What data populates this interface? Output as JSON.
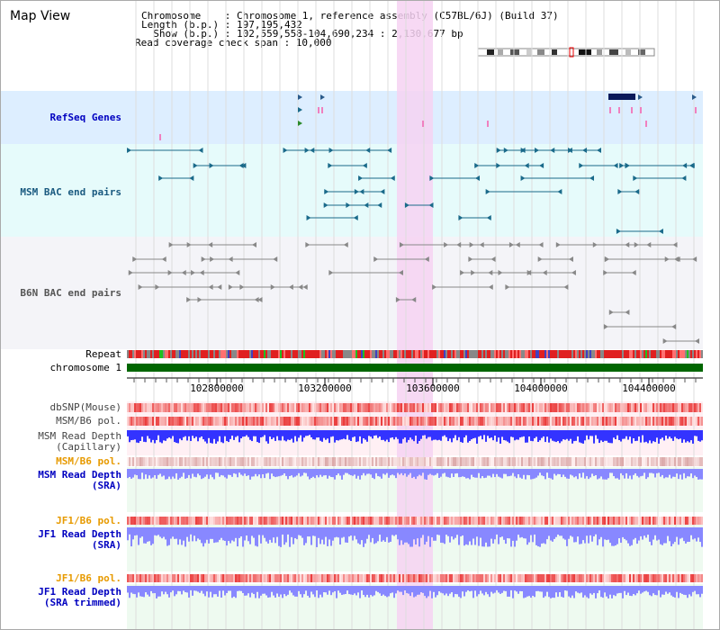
{
  "view_title": "Map View",
  "header": {
    "line1": "Chromosome    : Chromosome 1, reference assembly (C57BL/6J) (Build 37)",
    "line2": "Length (b.p.) : 197,195,432",
    "line3": "  Show (b.p.) : 102,559,558-104,690,234 : 2,130,677 bp",
    "line4": "Read coverage check span : 10,000"
  },
  "tracks": {
    "refseq": "RefSeq Genes",
    "msm_bac": "MSM BAC end pairs",
    "b6n_bac": "B6N BAC end pairs",
    "repeat": "Repeat",
    "chromosome": "chromosome 1",
    "dbsnp": "dbSNP(Mouse)",
    "msm_b6_pol": "MSM/B6 pol.",
    "msm_depth_cap_1": "MSM Read Depth",
    "msm_depth_cap_2": "(Capillary)",
    "msm_b6_pol2": "MSM/B6 pol.",
    "msm_depth_sra_1": "MSM Read Depth",
    "msm_depth_sra_2": "(SRA)",
    "jf1_pol": "JF1/B6 pol.",
    "jf1_depth_1": "JF1 Read Depth",
    "jf1_depth_2": "(SRA)",
    "jf1_pol2": "JF1/B6 pol.",
    "jf1_trim_1": "JF1 Read Depth",
    "jf1_trim_2": "(SRA trimmed)"
  },
  "axis_ticks": [
    "102800000",
    "103200000",
    "103600000",
    "104000000",
    "104400000"
  ],
  "colors": {
    "refseq_bg": "#ddeeff",
    "msm_bac_bg": "#e6fbfb",
    "b6n_bg": "#f4f4f8",
    "highlight": "#f6d2f2",
    "chromosome": "#006600",
    "teal": "#1a6a8a",
    "depth_blue": "#3333ff",
    "depth_lblue": "#8888ff",
    "pol_red": "#ee3333"
  }
}
